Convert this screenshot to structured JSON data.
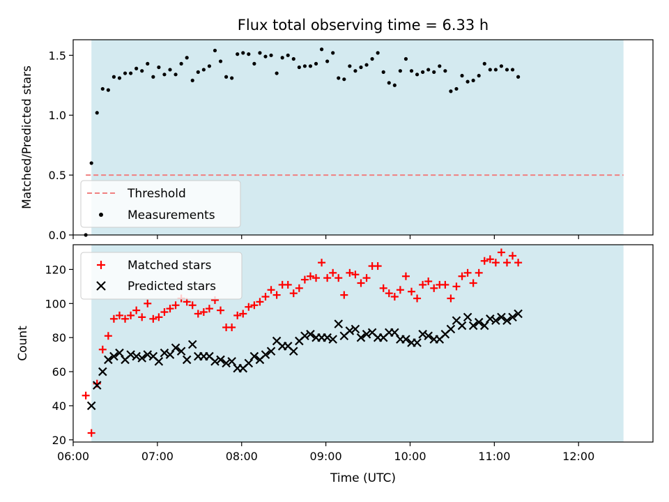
{
  "chart_data": [
    {
      "type": "scatter",
      "title": "Flux total observing time = 6.33 h",
      "xlabel": "",
      "ylabel": "Matched/Predicted stars",
      "xlim": [
        "06:00",
        "12:53"
      ],
      "ylim": [
        0.0,
        1.63
      ],
      "yticks": [
        "0.0",
        "0.5",
        "1.0",
        "1.5"
      ],
      "shaded_span": [
        "06:13",
        "12:32"
      ],
      "shade_color": "#d4eaf0",
      "legend_position": "lower-left",
      "threshold": {
        "name": "Threshold",
        "value": 0.5,
        "x_range": [
          "06:09",
          "12:32"
        ],
        "color": "#f08080",
        "style": "dashed"
      },
      "series": [
        {
          "name": "Measurements",
          "color": "#000000",
          "marker": "dot",
          "points": [
            [
              "06:09",
              0.0
            ],
            [
              "06:13",
              0.6
            ],
            [
              "06:17",
              1.02
            ],
            [
              "06:21",
              1.22
            ],
            [
              "06:25",
              1.21
            ],
            [
              "06:29",
              1.32
            ],
            [
              "06:33",
              1.31
            ],
            [
              "06:37",
              1.35
            ],
            [
              "06:41",
              1.35
            ],
            [
              "06:45",
              1.39
            ],
            [
              "06:49",
              1.37
            ],
            [
              "06:53",
              1.43
            ],
            [
              "06:57",
              1.32
            ],
            [
              "07:01",
              1.4
            ],
            [
              "07:05",
              1.34
            ],
            [
              "07:09",
              1.38
            ],
            [
              "07:13",
              1.34
            ],
            [
              "07:17",
              1.43
            ],
            [
              "07:21",
              1.48
            ],
            [
              "07:25",
              1.29
            ],
            [
              "07:29",
              1.36
            ],
            [
              "07:33",
              1.38
            ],
            [
              "07:37",
              1.41
            ],
            [
              "07:41",
              1.54
            ],
            [
              "07:45",
              1.45
            ],
            [
              "07:49",
              1.32
            ],
            [
              "07:53",
              1.31
            ],
            [
              "07:57",
              1.51
            ],
            [
              "08:01",
              1.52
            ],
            [
              "08:05",
              1.51
            ],
            [
              "08:09",
              1.43
            ],
            [
              "08:13",
              1.52
            ],
            [
              "08:17",
              1.49
            ],
            [
              "08:21",
              1.5
            ],
            [
              "08:25",
              1.35
            ],
            [
              "08:29",
              1.48
            ],
            [
              "08:33",
              1.5
            ],
            [
              "08:37",
              1.47
            ],
            [
              "08:41",
              1.4
            ],
            [
              "08:45",
              1.41
            ],
            [
              "08:49",
              1.41
            ],
            [
              "08:53",
              1.43
            ],
            [
              "08:57",
              1.55
            ],
            [
              "09:01",
              1.45
            ],
            [
              "09:05",
              1.52
            ],
            [
              "09:09",
              1.31
            ],
            [
              "09:13",
              1.3
            ],
            [
              "09:17",
              1.41
            ],
            [
              "09:21",
              1.37
            ],
            [
              "09:25",
              1.4
            ],
            [
              "09:29",
              1.42
            ],
            [
              "09:33",
              1.47
            ],
            [
              "09:37",
              1.52
            ],
            [
              "09:41",
              1.36
            ],
            [
              "09:45",
              1.27
            ],
            [
              "09:49",
              1.25
            ],
            [
              "09:53",
              1.37
            ],
            [
              "09:57",
              1.47
            ],
            [
              "10:01",
              1.37
            ],
            [
              "10:05",
              1.34
            ],
            [
              "10:09",
              1.36
            ],
            [
              "10:13",
              1.38
            ],
            [
              "10:17",
              1.36
            ],
            [
              "10:21",
              1.41
            ],
            [
              "10:25",
              1.37
            ],
            [
              "10:29",
              1.2
            ],
            [
              "10:33",
              1.22
            ],
            [
              "10:37",
              1.33
            ],
            [
              "10:41",
              1.28
            ],
            [
              "10:45",
              1.29
            ],
            [
              "10:49",
              1.33
            ],
            [
              "10:53",
              1.43
            ],
            [
              "10:57",
              1.38
            ],
            [
              "11:01",
              1.38
            ],
            [
              "11:05",
              1.41
            ],
            [
              "11:09",
              1.38
            ],
            [
              "11:13",
              1.38
            ],
            [
              "11:17",
              1.32
            ]
          ]
        }
      ]
    },
    {
      "type": "scatter",
      "title": "",
      "xlabel": "Time (UTC)",
      "ylabel": "Count",
      "xlim": [
        "06:00",
        "12:53"
      ],
      "ylim": [
        18.7,
        134.5
      ],
      "yticks": [
        "20",
        "40",
        "60",
        "80",
        "100",
        "120"
      ],
      "xticks": [
        "06:00",
        "07:00",
        "08:00",
        "09:00",
        "10:00",
        "11:00",
        "12:00"
      ],
      "shaded_span": [
        "06:13",
        "12:32"
      ],
      "shade_color": "#d4eaf0",
      "legend_position": "upper-left",
      "series": [
        {
          "name": "Matched stars",
          "color": "#ff0000",
          "marker": "plus",
          "points": [
            [
              "06:09",
              46
            ],
            [
              "06:13",
              24
            ],
            [
              "06:17",
              53
            ],
            [
              "06:21",
              73
            ],
            [
              "06:25",
              81
            ],
            [
              "06:29",
              91
            ],
            [
              "06:33",
              93
            ],
            [
              "06:37",
              91
            ],
            [
              "06:41",
              93
            ],
            [
              "06:45",
              96
            ],
            [
              "06:49",
              92
            ],
            [
              "06:53",
              100
            ],
            [
              "06:57",
              91
            ],
            [
              "07:01",
              92
            ],
            [
              "07:05",
              95
            ],
            [
              "07:09",
              97
            ],
            [
              "07:13",
              99
            ],
            [
              "07:17",
              103
            ],
            [
              "07:21",
              101
            ],
            [
              "07:25",
              99
            ],
            [
              "07:29",
              94
            ],
            [
              "07:33",
              95
            ],
            [
              "07:37",
              97
            ],
            [
              "07:41",
              102
            ],
            [
              "07:45",
              96
            ],
            [
              "07:49",
              86
            ],
            [
              "07:53",
              86
            ],
            [
              "07:57",
              93
            ],
            [
              "08:01",
              94
            ],
            [
              "08:05",
              98
            ],
            [
              "08:09",
              99
            ],
            [
              "08:13",
              101
            ],
            [
              "08:17",
              104
            ],
            [
              "08:21",
              108
            ],
            [
              "08:25",
              105
            ],
            [
              "08:29",
              111
            ],
            [
              "08:33",
              111
            ],
            [
              "08:37",
              106
            ],
            [
              "08:41",
              109
            ],
            [
              "08:45",
              114
            ],
            [
              "08:49",
              116
            ],
            [
              "08:53",
              115
            ],
            [
              "08:57",
              124
            ],
            [
              "09:01",
              115
            ],
            [
              "09:05",
              118
            ],
            [
              "09:09",
              115
            ],
            [
              "09:13",
              105
            ],
            [
              "09:17",
              118
            ],
            [
              "09:21",
              117
            ],
            [
              "09:25",
              112
            ],
            [
              "09:29",
              115
            ],
            [
              "09:33",
              122
            ],
            [
              "09:37",
              122
            ],
            [
              "09:41",
              109
            ],
            [
              "09:45",
              106
            ],
            [
              "09:49",
              104
            ],
            [
              "09:53",
              108
            ],
            [
              "09:57",
              116
            ],
            [
              "10:01",
              107
            ],
            [
              "10:05",
              103
            ],
            [
              "10:09",
              111
            ],
            [
              "10:13",
              113
            ],
            [
              "10:17",
              109
            ],
            [
              "10:21",
              111
            ],
            [
              "10:25",
              111
            ],
            [
              "10:29",
              103
            ],
            [
              "10:33",
              110
            ],
            [
              "10:37",
              116
            ],
            [
              "10:41",
              118
            ],
            [
              "10:45",
              112
            ],
            [
              "10:49",
              118
            ],
            [
              "10:53",
              125
            ],
            [
              "10:57",
              126
            ],
            [
              "11:01",
              124
            ],
            [
              "11:05",
              130
            ],
            [
              "11:09",
              124
            ],
            [
              "11:13",
              128
            ],
            [
              "11:17",
              124
            ]
          ]
        },
        {
          "name": "Predicted stars",
          "color": "#000000",
          "marker": "x",
          "points": [
            [
              "06:13",
              40
            ],
            [
              "06:17",
              52
            ],
            [
              "06:21",
              60
            ],
            [
              "06:25",
              67
            ],
            [
              "06:29",
              69
            ],
            [
              "06:33",
              71
            ],
            [
              "06:37",
              67
            ],
            [
              "06:41",
              70
            ],
            [
              "06:45",
              69
            ],
            [
              "06:49",
              68
            ],
            [
              "06:53",
              70
            ],
            [
              "06:57",
              69
            ],
            [
              "07:01",
              66
            ],
            [
              "07:05",
              71
            ],
            [
              "07:09",
              70
            ],
            [
              "07:13",
              74
            ],
            [
              "07:17",
              72
            ],
            [
              "07:21",
              67
            ],
            [
              "07:25",
              76
            ],
            [
              "07:29",
              69
            ],
            [
              "07:33",
              69
            ],
            [
              "07:37",
              69
            ],
            [
              "07:41",
              66
            ],
            [
              "07:45",
              67
            ],
            [
              "07:49",
              65
            ],
            [
              "07:53",
              66
            ],
            [
              "07:57",
              62
            ],
            [
              "08:01",
              62
            ],
            [
              "08:05",
              65
            ],
            [
              "08:09",
              69
            ],
            [
              "08:13",
              67
            ],
            [
              "08:17",
              70
            ],
            [
              "08:21",
              72
            ],
            [
              "08:25",
              78
            ],
            [
              "08:29",
              75
            ],
            [
              "08:33",
              75
            ],
            [
              "08:37",
              72
            ],
            [
              "08:41",
              78
            ],
            [
              "08:45",
              81
            ],
            [
              "08:49",
              82
            ],
            [
              "08:53",
              80
            ],
            [
              "08:57",
              80
            ],
            [
              "09:01",
              80
            ],
            [
              "09:05",
              79
            ],
            [
              "09:09",
              88
            ],
            [
              "09:13",
              81
            ],
            [
              "09:17",
              84
            ],
            [
              "09:21",
              85
            ],
            [
              "09:25",
              80
            ],
            [
              "09:29",
              82
            ],
            [
              "09:33",
              83
            ],
            [
              "09:37",
              80
            ],
            [
              "09:41",
              80
            ],
            [
              "09:45",
              83
            ],
            [
              "09:49",
              83
            ],
            [
              "09:53",
              79
            ],
            [
              "09:57",
              79
            ],
            [
              "10:01",
              77
            ],
            [
              "10:05",
              77
            ],
            [
              "10:09",
              82
            ],
            [
              "10:13",
              81
            ],
            [
              "10:17",
              79
            ],
            [
              "10:21",
              79
            ],
            [
              "10:25",
              82
            ],
            [
              "10:29",
              85
            ],
            [
              "10:33",
              90
            ],
            [
              "10:37",
              87
            ],
            [
              "10:41",
              92
            ],
            [
              "10:45",
              87
            ],
            [
              "10:49",
              89
            ],
            [
              "10:53",
              87
            ],
            [
              "10:57",
              91
            ],
            [
              "11:01",
              90
            ],
            [
              "11:05",
              92
            ],
            [
              "11:09",
              90
            ],
            [
              "11:13",
              92
            ],
            [
              "11:17",
              94
            ]
          ]
        }
      ]
    }
  ]
}
